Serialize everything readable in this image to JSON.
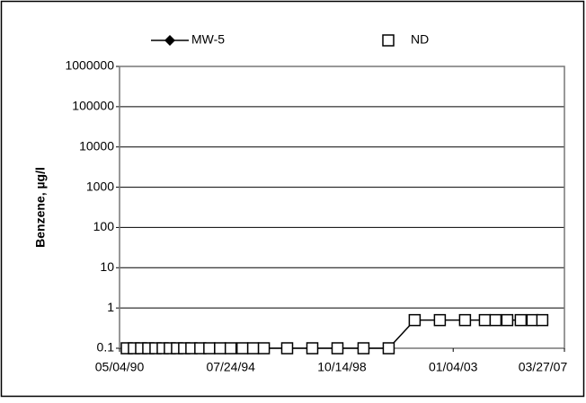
{
  "chart_data": {
    "type": "line",
    "log_y": true,
    "grid": true,
    "legend": "top",
    "ylabel": "Benzene, µg/l",
    "x": [
      "08/12/90",
      "11/19/90",
      "02/27/91",
      "06/06/91",
      "09/14/91",
      "12/23/91",
      "03/31/92",
      "07/09/92",
      "10/16/92",
      "01/24/93",
      "05/28/93",
      "09/30/93",
      "02/26/94",
      "07/24/94",
      "01/02/95",
      "05/31/95",
      "10/27/95",
      "09/14/96",
      "08/29/97",
      "08/13/98",
      "08/09/99",
      "07/23/00",
      "07/19/01",
      "07/03/02",
      "06/17/03",
      "03/18/04",
      "08/14/04",
      "01/23/05",
      "07/29/05",
      "01/07/06",
      "05/24/06"
    ],
    "xlim": [
      "05/04/90",
      "03/27/07"
    ],
    "xticks": [
      "05/04/90",
      "07/24/94",
      "10/14/98",
      "01/04/03",
      "03/27/07"
    ],
    "ylim": [
      0.1,
      1000000
    ],
    "yticks": [
      0.1,
      1,
      10,
      100,
      1000,
      10000,
      100000,
      1000000
    ],
    "series": [
      {
        "name": "MW-5",
        "color": "#000000",
        "marker": "diamond",
        "values": [
          0.1,
          0.1,
          0.1,
          0.1,
          0.1,
          0.1,
          0.1,
          0.1,
          0.1,
          0.1,
          0.1,
          0.1,
          0.1,
          0.1,
          0.1,
          0.1,
          0.1,
          0.1,
          0.1,
          0.1,
          0.1,
          0.1,
          0.5,
          0.5,
          0.5,
          0.5,
          0.5,
          0.5,
          0.5,
          0.5,
          0.5
        ]
      },
      {
        "name": "ND",
        "color": "#000000",
        "marker": "square",
        "values": [
          0.1,
          0.1,
          0.1,
          0.1,
          0.1,
          0.1,
          0.1,
          0.1,
          0.1,
          0.1,
          0.1,
          0.1,
          0.1,
          0.1,
          0.1,
          0.1,
          0.1,
          0.1,
          0.1,
          0.1,
          0.1,
          0.1,
          0.5,
          0.5,
          0.5,
          0.5,
          0.5,
          0.5,
          0.5,
          0.5,
          0.5
        ]
      }
    ]
  }
}
